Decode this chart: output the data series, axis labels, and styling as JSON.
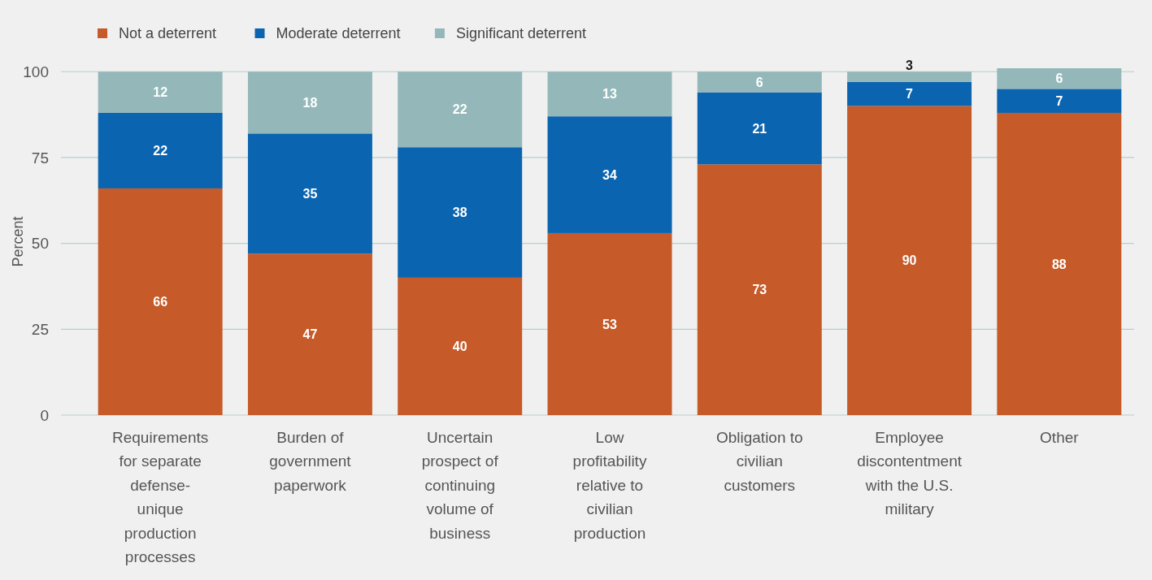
{
  "chart_data": {
    "type": "bar",
    "stacked": true,
    "ylabel": "Percent",
    "categories": [
      "Requirements for separate defense-unique production processes",
      "Burden of government paperwork",
      "Uncertain prospect of continuing volume of business",
      "Low profitability relative to civilian production",
      "Obligation to civilian customers",
      "Employee discontentment with the U.S. military",
      "Other"
    ],
    "series": [
      {
        "name": "Not a deterrent",
        "color": "#c65a28",
        "values": [
          66,
          47,
          40,
          53,
          73,
          90,
          88
        ]
      },
      {
        "name": "Moderate deterrent",
        "color": "#0a64b0",
        "values": [
          22,
          35,
          38,
          34,
          21,
          7,
          7
        ]
      },
      {
        "name": "Significant deterrent",
        "color": "#94b8b9",
        "values": [
          12,
          18,
          22,
          13,
          6,
          3,
          6
        ]
      }
    ],
    "ylim": [
      0,
      101
    ],
    "yticks": [
      0,
      25,
      50,
      75,
      100
    ],
    "grid": "y",
    "legend": "top left",
    "data_labels": true
  }
}
